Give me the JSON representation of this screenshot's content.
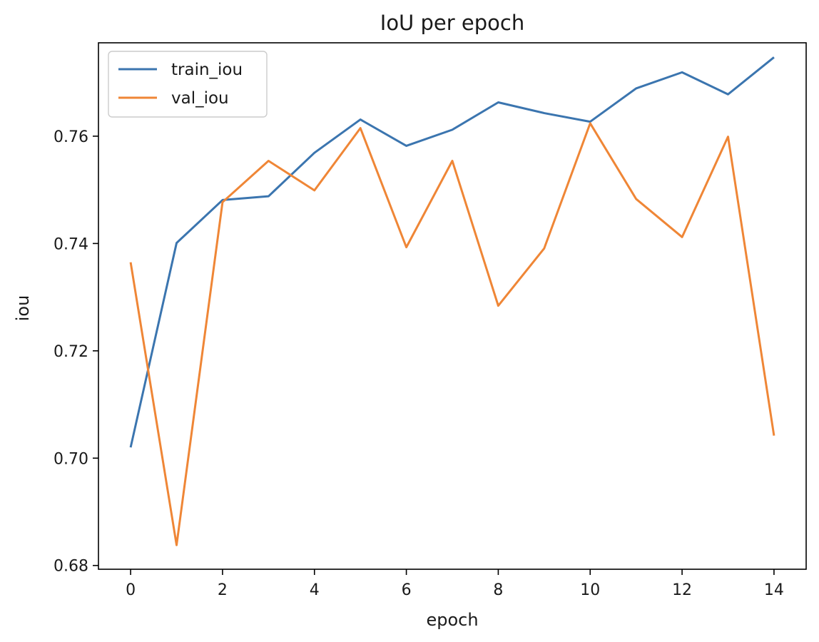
{
  "chart_data": {
    "type": "line",
    "title": "IoU per epoch",
    "xlabel": "epoch",
    "ylabel": "iou",
    "x": [
      0,
      1,
      2,
      3,
      4,
      5,
      6,
      7,
      8,
      9,
      10,
      11,
      12,
      13,
      14
    ],
    "xlim": [
      -0.7,
      14.7
    ],
    "ylim": [
      0.6793,
      0.7774
    ],
    "xticks": [
      0,
      2,
      4,
      6,
      8,
      10,
      12,
      14
    ],
    "xtick_labels": [
      "0",
      "2",
      "4",
      "6",
      "8",
      "10",
      "12",
      "14"
    ],
    "yticks": [
      0.68,
      0.7,
      0.72,
      0.74,
      0.76
    ],
    "ytick_labels": [
      "0.68",
      "0.70",
      "0.72",
      "0.74",
      "0.76"
    ],
    "grid": false,
    "legend_position": "upper left",
    "series": [
      {
        "name": "train_iou",
        "color": "#3b75af",
        "values": [
          0.702,
          0.7401,
          0.7481,
          0.7488,
          0.7569,
          0.7631,
          0.7582,
          0.7612,
          0.7663,
          0.7643,
          0.7627,
          0.7689,
          0.7719,
          0.7678,
          0.7747
        ]
      },
      {
        "name": "val_iou",
        "color": "#ef8636",
        "values": [
          0.7365,
          0.6838,
          0.7477,
          0.7554,
          0.7499,
          0.7615,
          0.7393,
          0.7554,
          0.7284,
          0.7391,
          0.7624,
          0.7483,
          0.7412,
          0.7599,
          0.7042
        ]
      }
    ]
  }
}
